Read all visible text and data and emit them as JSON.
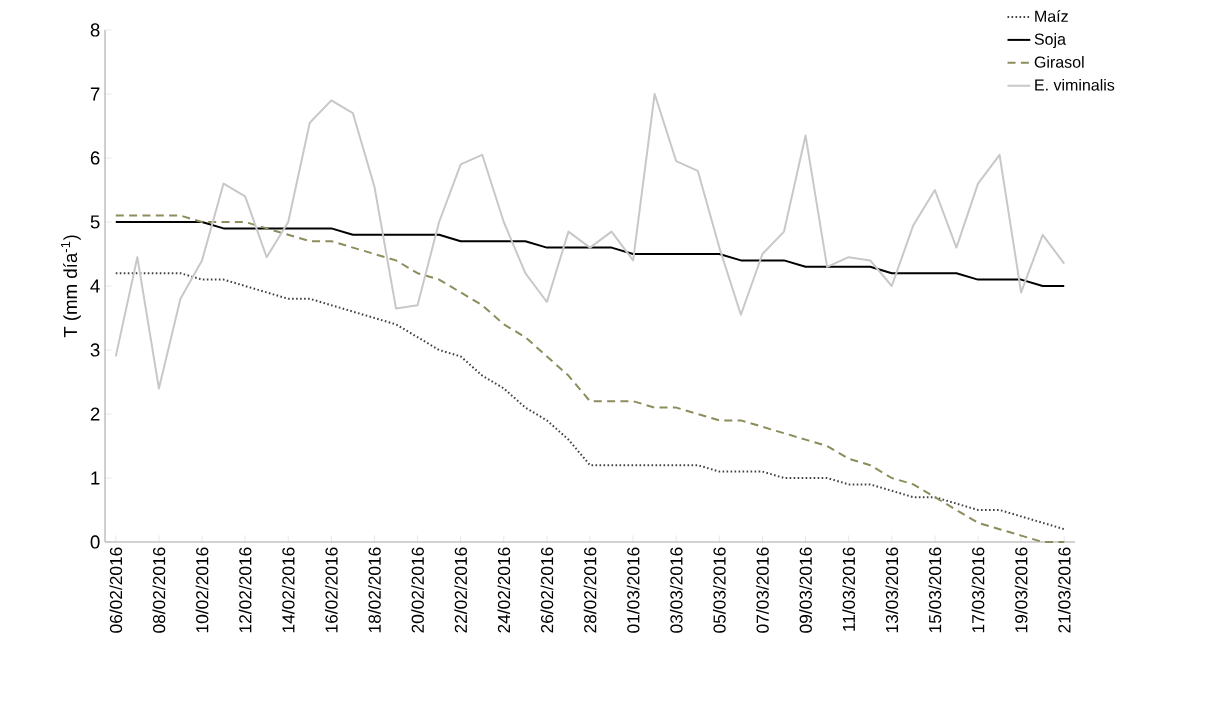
{
  "chart_data": {
    "type": "line",
    "ylabel": "T (mm día$^{-1}$)",
    "categories": [
      "06/02/2016",
      null,
      "08/02/2016",
      null,
      "10/02/2016",
      null,
      "12/02/2016",
      null,
      "14/02/2016",
      null,
      "16/02/2016",
      null,
      "18/02/2016",
      null,
      "20/02/2016",
      null,
      "22/02/2016",
      null,
      "24/02/2016",
      null,
      "26/02/2016",
      null,
      "28/02/2016",
      null,
      "01/03/2016",
      null,
      "03/03/2016",
      null,
      "05/03/2016",
      null,
      "07/03/2016",
      null,
      "09/03/2016",
      null,
      "11/03/2016",
      null,
      "13/03/2016",
      null,
      "15/03/2016",
      null,
      "17/03/2016",
      null,
      "19/03/2016",
      null,
      "21/03/2016"
    ],
    "ylim": [
      0,
      8
    ],
    "yticks": [
      0,
      1,
      2,
      3,
      4,
      5,
      6,
      7,
      8
    ],
    "legend": "top right",
    "marker": "none",
    "series": [
      {
        "name": "Maíz",
        "color": "#404040",
        "line_style": "dotted",
        "values": [
          4.2,
          4.2,
          4.2,
          4.2,
          4.1,
          4.1,
          4.0,
          3.9,
          3.8,
          3.8,
          3.7,
          3.6,
          3.5,
          3.4,
          3.2,
          3.0,
          2.9,
          2.6,
          2.4,
          2.1,
          1.9,
          1.6,
          1.2,
          1.2,
          1.2,
          1.2,
          1.2,
          1.2,
          1.1,
          1.1,
          1.1,
          1.0,
          1.0,
          1.0,
          0.9,
          0.9,
          0.8,
          0.7,
          0.7,
          0.6,
          0.5,
          0.5,
          0.4,
          0.3,
          0.2
        ]
      },
      {
        "name": "Soja",
        "color": "#000000",
        "line_style": "solid",
        "values": [
          5.0,
          5.0,
          5.0,
          5.0,
          5.0,
          4.9,
          4.9,
          4.9,
          4.9,
          4.9,
          4.9,
          4.8,
          4.8,
          4.8,
          4.8,
          4.8,
          4.7,
          4.7,
          4.7,
          4.7,
          4.6,
          4.6,
          4.6,
          4.6,
          4.5,
          4.5,
          4.5,
          4.5,
          4.5,
          4.4,
          4.4,
          4.4,
          4.3,
          4.3,
          4.3,
          4.3,
          4.2,
          4.2,
          4.2,
          4.2,
          4.1,
          4.1,
          4.1,
          4.0,
          4.0
        ]
      },
      {
        "name": "Girasol",
        "color": "#8c8c5c",
        "line_style": "dashed",
        "values": [
          5.1,
          5.1,
          5.1,
          5.1,
          5.0,
          5.0,
          5.0,
          4.9,
          4.8,
          4.7,
          4.7,
          4.6,
          4.5,
          4.4,
          4.2,
          4.1,
          3.9,
          3.7,
          3.4,
          3.2,
          2.9,
          2.6,
          2.2,
          2.2,
          2.2,
          2.1,
          2.1,
          2.0,
          1.9,
          1.9,
          1.8,
          1.7,
          1.6,
          1.5,
          1.3,
          1.2,
          1.0,
          0.9,
          0.7,
          0.5,
          0.3,
          0.2,
          0.1,
          0.0,
          0.0
        ]
      },
      {
        "name": "E. viminalis",
        "color": "#c8c8c8",
        "line_style": "solid",
        "values": [
          2.9,
          4.45,
          2.4,
          3.8,
          4.4,
          5.6,
          5.4,
          4.45,
          5.0,
          6.55,
          6.9,
          6.7,
          5.55,
          3.65,
          3.7,
          5.0,
          5.9,
          6.05,
          5.0,
          4.2,
          3.75,
          4.85,
          4.6,
          4.85,
          4.4,
          7.0,
          5.95,
          5.8,
          4.6,
          3.55,
          4.5,
          4.85,
          6.35,
          4.3,
          4.45,
          4.4,
          4.0,
          4.95,
          5.5,
          4.6,
          5.6,
          6.05,
          3.9,
          4.8,
          4.35
        ]
      }
    ]
  }
}
